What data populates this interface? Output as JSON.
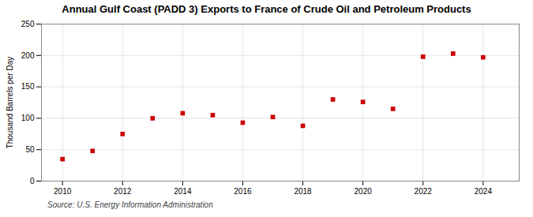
{
  "chart_data": {
    "type": "scatter",
    "title": "Annual Gulf Coast (PADD 3) Exports to France of Crude Oil and Petroleum Products",
    "ylabel": "Thousand Barrels per Day",
    "source": "Source: U.S. Energy Information Administration",
    "x": [
      2010,
      2011,
      2012,
      2013,
      2014,
      2015,
      2016,
      2017,
      2018,
      2019,
      2020,
      2021,
      2022,
      2023,
      2024
    ],
    "values": [
      35,
      48,
      75,
      100,
      108,
      105,
      93,
      102,
      88,
      130,
      126,
      115,
      198,
      203,
      197
    ],
    "color": "#cc0000",
    "marker": "square",
    "xlim": [
      2009.3,
      2025.2
    ],
    "xticks": [
      2010,
      2012,
      2014,
      2016,
      2018,
      2020,
      2022,
      2024
    ],
    "ylim": [
      0,
      250
    ],
    "yticks": [
      0,
      50,
      100,
      150,
      200,
      250
    ],
    "grid": true
  }
}
